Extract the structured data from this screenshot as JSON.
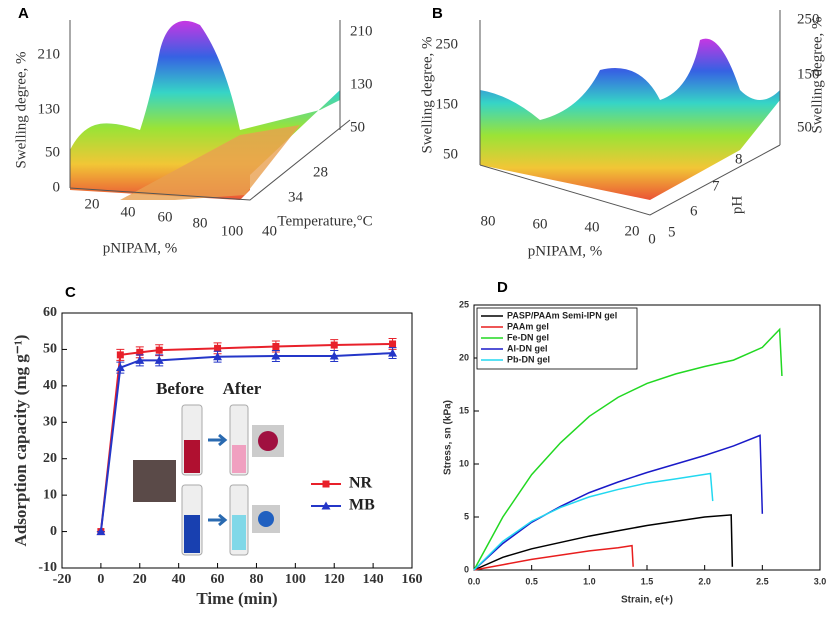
{
  "chart_data": [
    {
      "type": "surface",
      "panel": "A",
      "zlabel": "Swelling degree, %",
      "xlabel": "pNIPAM, %",
      "ylabel": "Temperature,°C",
      "zticks": [
        0,
        50,
        130,
        210
      ],
      "z2ticks": [
        50,
        130,
        210
      ],
      "xticks": [
        20,
        40,
        60,
        80,
        100
      ],
      "yticks": [
        40,
        34,
        28
      ]
    },
    {
      "type": "surface",
      "panel": "B",
      "zlabel": "Swelling degree, %",
      "z2label": "Swelling degree, %",
      "xlabel": "pNIPAM, %",
      "ylabel": "pH",
      "zticks": [
        50,
        150,
        250
      ],
      "z2ticks": [
        50,
        150,
        250
      ],
      "xticks": [
        80,
        60,
        40,
        20,
        0
      ],
      "yticks": [
        5,
        6,
        7,
        8
      ]
    },
    {
      "type": "line",
      "panel": "C",
      "xlabel": "Time (min)",
      "ylabel": "Adsorption capacity (mg g⁻¹)",
      "annotations": [
        "Before",
        "After"
      ],
      "x": [
        0,
        10,
        20,
        30,
        60,
        90,
        120,
        150
      ],
      "series": [
        {
          "name": "NR",
          "color": "#e8202a",
          "marker": "square",
          "values": [
            0,
            48.5,
            49.2,
            49.8,
            50.3,
            50.8,
            51.2,
            51.5
          ],
          "errors": [
            0,
            1.5,
            1.5,
            1.5,
            1.5,
            1.5,
            1.5,
            1.5
          ]
        },
        {
          "name": "MB",
          "color": "#2436c8",
          "marker": "triangle",
          "values": [
            0,
            45,
            47,
            47,
            48,
            48.2,
            48.2,
            49
          ],
          "errors": [
            0,
            1.5,
            1.5,
            1.5,
            1.5,
            1.5,
            1.5,
            1.5
          ]
        }
      ],
      "xlim": [
        -20,
        160
      ],
      "xticks": [
        -20,
        0,
        20,
        40,
        60,
        80,
        100,
        120,
        140,
        160
      ],
      "ylim": [
        -10,
        60
      ],
      "yticks": [
        -10,
        0,
        10,
        20,
        30,
        40,
        50,
        60
      ],
      "legend": "lower right"
    },
    {
      "type": "line",
      "panel": "D",
      "xlabel": "Strain, e(+)",
      "ylabel": "Stress, sn (kPa)",
      "series": [
        {
          "name": "PASP/PAAm Semi-IPN gel",
          "color": "#000000",
          "x": [
            0,
            0.25,
            0.5,
            0.75,
            1,
            1.25,
            1.5,
            1.75,
            2,
            2.23,
            2.24
          ],
          "values": [
            0,
            1.2,
            2,
            2.6,
            3.2,
            3.7,
            4.2,
            4.6,
            5,
            5.2,
            0.3
          ]
        },
        {
          "name": "PAAm gel",
          "color": "#e81e1e",
          "x": [
            0,
            0.25,
            0.5,
            0.75,
            1,
            1.25,
            1.37,
            1.38
          ],
          "values": [
            0,
            0.5,
            1,
            1.4,
            1.8,
            2.1,
            2.3,
            0.3
          ]
        },
        {
          "name": "Fe-DN gel",
          "color": "#22d822",
          "x": [
            0,
            0.25,
            0.5,
            0.75,
            1,
            1.25,
            1.5,
            1.75,
            2,
            2.25,
            2.5,
            2.65,
            2.67
          ],
          "values": [
            0,
            5,
            9,
            12,
            14.5,
            16.3,
            17.6,
            18.5,
            19.2,
            19.8,
            21,
            22.7,
            18.3
          ]
        },
        {
          "name": "Al-DN gel",
          "color": "#1a1ac8",
          "x": [
            0,
            0.25,
            0.5,
            0.75,
            1,
            1.25,
            1.5,
            1.75,
            2,
            2.25,
            2.48,
            2.5
          ],
          "values": [
            0,
            2.5,
            4.5,
            6,
            7.3,
            8.3,
            9.2,
            10,
            10.8,
            11.7,
            12.7,
            5.3
          ]
        },
        {
          "name": "Pb-DN gel",
          "color": "#22d8f0",
          "x": [
            0,
            0.25,
            0.5,
            0.75,
            1,
            1.25,
            1.5,
            1.75,
            2.05,
            2.07
          ],
          "values": [
            0,
            2.7,
            4.6,
            5.9,
            6.9,
            7.6,
            8.2,
            8.6,
            9.1,
            6.5
          ]
        }
      ],
      "xlim": [
        0,
        3
      ],
      "xticks": [
        {
          "value": 0,
          "label": "0.0"
        },
        0.5,
        {
          "value": 1,
          "label": "1.0"
        },
        1.5,
        {
          "value": 2,
          "label": "2.0"
        },
        2.5,
        {
          "value": 3,
          "label": "3.0"
        }
      ],
      "ylim": [
        0,
        25
      ],
      "yticks": [
        0,
        5,
        10,
        15,
        20,
        25
      ],
      "legend": "upper left"
    }
  ]
}
